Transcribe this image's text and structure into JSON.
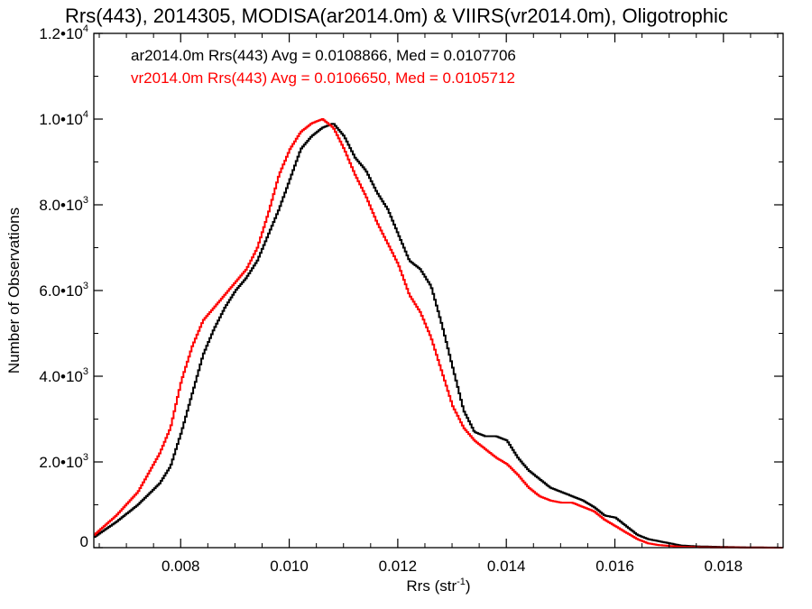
{
  "chart_data": {
    "type": "line",
    "title": "Rrs(443), 2014305, MODISA(ar2014.0m) & VIIRS(vr2014.0m), Oligotrophic",
    "xlabel": "Rrs (str",
    "xlabel_sup": "-1",
    "xlabel_end": ")",
    "ylabel": "Number of Observations",
    "xlim": [
      0.0064,
      0.0191
    ],
    "ylim": [
      0,
      12000
    ],
    "x_ticks": [
      {
        "value": 0.008,
        "label": "0.008"
      },
      {
        "value": 0.01,
        "label": "0.010"
      },
      {
        "value": 0.012,
        "label": "0.012"
      },
      {
        "value": 0.014,
        "label": "0.014"
      },
      {
        "value": 0.016,
        "label": "0.016"
      },
      {
        "value": 0.018,
        "label": "0.018"
      }
    ],
    "y_ticks": [
      {
        "value": 0,
        "mant": "0",
        "exp": ""
      },
      {
        "value": 2000,
        "mant": "2.0•10",
        "exp": "3"
      },
      {
        "value": 4000,
        "mant": "4.0•10",
        "exp": "3"
      },
      {
        "value": 6000,
        "mant": "6.0•10",
        "exp": "3"
      },
      {
        "value": 8000,
        "mant": "8.0•10",
        "exp": "3"
      },
      {
        "value": 10000,
        "mant": "1.0•10",
        "exp": "4"
      },
      {
        "value": 12000,
        "mant": "1.2•10",
        "exp": "4"
      }
    ],
    "legend_placement": "top-left",
    "grid": false,
    "series": [
      {
        "name": "ar2014.0m Rrs(443) Avg = 0.0108866, Med = 0.0107706",
        "color": "#000000",
        "x": [
          0.0064,
          0.0068,
          0.0072,
          0.0076,
          0.0078,
          0.008,
          0.0082,
          0.0084,
          0.0086,
          0.0088,
          0.009,
          0.0092,
          0.0094,
          0.0096,
          0.0098,
          0.01,
          0.0102,
          0.0104,
          0.0106,
          0.0108,
          0.011,
          0.0112,
          0.0114,
          0.0116,
          0.0118,
          0.012,
          0.0122,
          0.0124,
          0.0126,
          0.0128,
          0.013,
          0.0132,
          0.0134,
          0.0136,
          0.0138,
          0.014,
          0.0142,
          0.0144,
          0.0146,
          0.0148,
          0.015,
          0.0152,
          0.0154,
          0.0156,
          0.0158,
          0.016,
          0.0162,
          0.0164,
          0.0166,
          0.0168,
          0.017,
          0.0172,
          0.0175,
          0.018,
          0.0185,
          0.0191
        ],
        "y": [
          250,
          600,
          1000,
          1500,
          1900,
          2700,
          3600,
          4500,
          5100,
          5600,
          6000,
          6300,
          6700,
          7300,
          7900,
          8600,
          9300,
          9600,
          9800,
          9900,
          9600,
          9100,
          8800,
          8300,
          7900,
          7300,
          6700,
          6500,
          6100,
          5200,
          4200,
          3200,
          2700,
          2600,
          2600,
          2500,
          2100,
          1800,
          1600,
          1400,
          1300,
          1200,
          1100,
          950,
          750,
          700,
          500,
          300,
          200,
          150,
          100,
          50,
          30,
          15,
          5,
          0
        ]
      },
      {
        "name": "vr2014.0m Rrs(443) Avg = 0.0106650, Med = 0.0105712",
        "color": "#ff0000",
        "x": [
          0.0064,
          0.0068,
          0.0072,
          0.0076,
          0.0078,
          0.008,
          0.0082,
          0.0084,
          0.0086,
          0.0088,
          0.009,
          0.0092,
          0.0094,
          0.0096,
          0.0098,
          0.01,
          0.0102,
          0.0104,
          0.0106,
          0.0108,
          0.011,
          0.0112,
          0.0114,
          0.0116,
          0.0118,
          0.012,
          0.0122,
          0.0124,
          0.0126,
          0.0128,
          0.013,
          0.0132,
          0.0134,
          0.0136,
          0.0138,
          0.014,
          0.0142,
          0.0144,
          0.0146,
          0.0148,
          0.015,
          0.0152,
          0.0154,
          0.0156,
          0.0158,
          0.016,
          0.0162,
          0.0164,
          0.0166,
          0.0168,
          0.017,
          0.0172,
          0.0175,
          0.018,
          0.0185,
          0.0191
        ],
        "y": [
          300,
          750,
          1300,
          2200,
          2800,
          3900,
          4700,
          5300,
          5600,
          5900,
          6200,
          6500,
          7000,
          7800,
          8700,
          9300,
          9700,
          9900,
          10000,
          9800,
          9300,
          8700,
          8200,
          7600,
          7100,
          6600,
          5900,
          5500,
          4900,
          4100,
          3300,
          2800,
          2500,
          2300,
          2100,
          1950,
          1700,
          1400,
          1200,
          1100,
          1050,
          1050,
          950,
          850,
          650,
          500,
          350,
          200,
          100,
          60,
          40,
          20,
          10,
          5,
          2,
          0
        ]
      }
    ]
  }
}
